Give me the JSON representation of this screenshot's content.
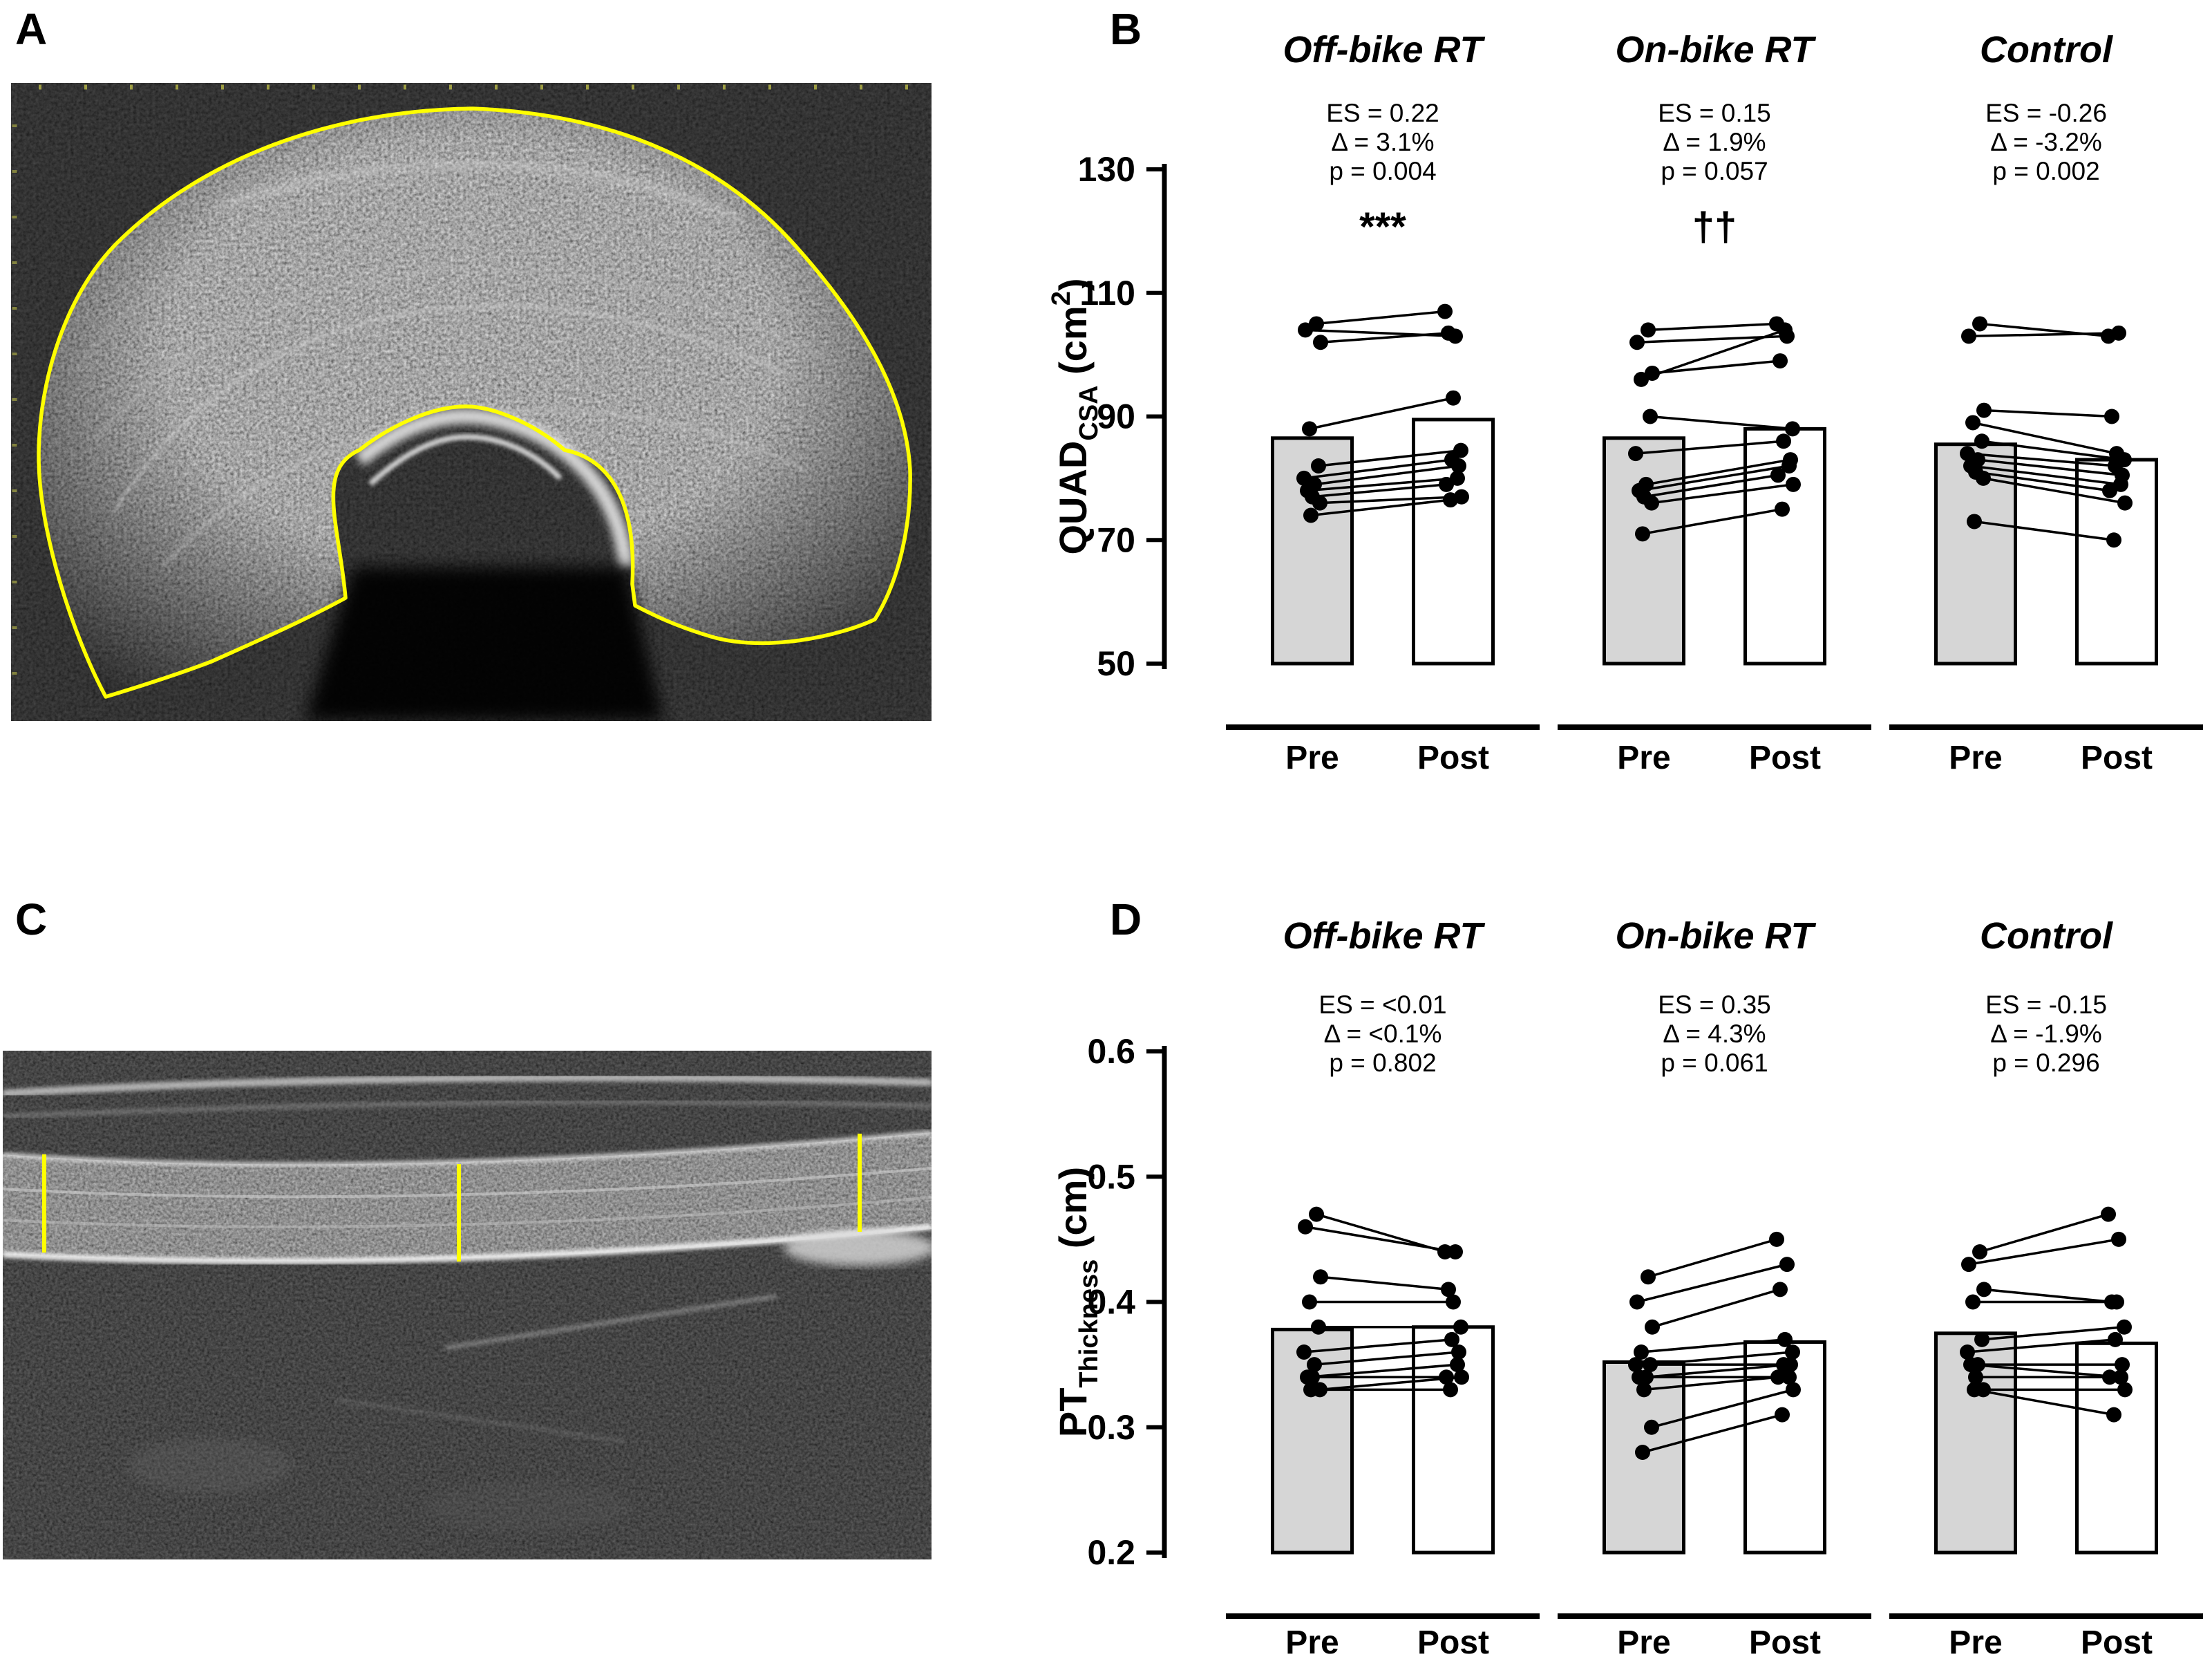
{
  "figure": {
    "panel_labels": {
      "a": "A",
      "b": "B",
      "c": "C",
      "d": "D"
    }
  },
  "styles": {
    "pre_fill": "#d6d6d6",
    "post_fill": "#ffffff",
    "outline": "#000000",
    "annotation_yellow": "#ffff00"
  },
  "chart_data": [
    {
      "panel": "B",
      "type": "bar",
      "title": "",
      "ylabel_text": "QUAD_CSA (cm2)",
      "ylabel_parts": [
        {
          "t": "QUAD",
          "pos": "n"
        },
        {
          "t": "CSA",
          "pos": "sub"
        },
        {
          "t": " (cm",
          "pos": "n"
        },
        {
          "t": "2",
          "pos": "sup"
        },
        {
          "t": ")",
          "pos": "n"
        }
      ],
      "ylim": [
        50,
        130
      ],
      "yticks": [
        "130",
        "110",
        "90",
        "70",
        "50"
      ],
      "categories": [
        "Pre",
        "Post"
      ],
      "legend": "none",
      "grid": false,
      "groups": [
        {
          "name": "Off-bike RT",
          "stats": [
            "ES = 0.22",
            "Δ = 3.1%",
            "p = 0.004"
          ],
          "marker": "***",
          "bars": {
            "pre": 86.5,
            "post": 89.5
          },
          "pairs": [
            [
              105,
              107
            ],
            [
              104,
              103
            ],
            [
              102,
              103.5
            ],
            [
              88,
              93
            ],
            [
              82,
              84.5
            ],
            [
              80,
              83
            ],
            [
              79,
              82
            ],
            [
              78,
              80
            ],
            [
              77,
              79
            ],
            [
              76,
              77
            ],
            [
              74,
              76.5
            ]
          ]
        },
        {
          "name": "On-bike RT",
          "stats": [
            "ES = 0.15",
            "Δ = 1.9%",
            "p = 0.057"
          ],
          "marker": "††",
          "bars": {
            "pre": 86.5,
            "post": 88
          },
          "pairs": [
            [
              104,
              105
            ],
            [
              102,
              103
            ],
            [
              97,
              99
            ],
            [
              96,
              104
            ],
            [
              90,
              88
            ],
            [
              84,
              86
            ],
            [
              79,
              83
            ],
            [
              78,
              82
            ],
            [
              77,
              80.5
            ],
            [
              76,
              79
            ],
            [
              71,
              75
            ]
          ]
        },
        {
          "name": "Control",
          "stats": [
            "ES = -0.26",
            "Δ = -3.2%",
            "p = 0.002"
          ],
          "marker": "",
          "bars": {
            "pre": 85.5,
            "post": 83
          },
          "pairs": [
            [
              105,
              103
            ],
            [
              103,
              103.5
            ],
            [
              91,
              90
            ],
            [
              89,
              84
            ],
            [
              86,
              83
            ],
            [
              84,
              82
            ],
            [
              83,
              80.5
            ],
            [
              82,
              79
            ],
            [
              81,
              78
            ],
            [
              80,
              76
            ],
            [
              73,
              70
            ]
          ]
        }
      ]
    },
    {
      "panel": "D",
      "type": "bar",
      "title": "",
      "ylabel_text": "PT_Thickness (cm)",
      "ylabel_parts": [
        {
          "t": "PT",
          "pos": "n"
        },
        {
          "t": "Thickness",
          "pos": "sub"
        },
        {
          "t": " (cm)",
          "pos": "n"
        }
      ],
      "ylim": [
        0.2,
        0.6
      ],
      "yticks": [
        "0.6",
        "0.5",
        "0.4",
        "0.3",
        "0.2"
      ],
      "categories": [
        "Pre",
        "Post"
      ],
      "legend": "none",
      "grid": false,
      "groups": [
        {
          "name": "Off-bike RT",
          "stats": [
            "ES = <0.01",
            "Δ = <0.1%",
            "p = 0.802"
          ],
          "marker": "",
          "bars": {
            "pre": 0.378,
            "post": 0.38
          },
          "pairs": [
            [
              0.47,
              0.44
            ],
            [
              0.46,
              0.44
            ],
            [
              0.42,
              0.41
            ],
            [
              0.4,
              0.4
            ],
            [
              0.38,
              0.38
            ],
            [
              0.36,
              0.37
            ],
            [
              0.35,
              0.36
            ],
            [
              0.34,
              0.35
            ],
            [
              0.34,
              0.34
            ],
            [
              0.33,
              0.34
            ],
            [
              0.33,
              0.33
            ]
          ]
        },
        {
          "name": "On-bike RT",
          "stats": [
            "ES = 0.35",
            "Δ = 4.3%",
            "p = 0.061"
          ],
          "marker": "",
          "bars": {
            "pre": 0.352,
            "post": 0.368
          },
          "pairs": [
            [
              0.42,
              0.45
            ],
            [
              0.4,
              0.43
            ],
            [
              0.38,
              0.41
            ],
            [
              0.36,
              0.37
            ],
            [
              0.35,
              0.36
            ],
            [
              0.35,
              0.35
            ],
            [
              0.34,
              0.35
            ],
            [
              0.34,
              0.34
            ],
            [
              0.33,
              0.34
            ],
            [
              0.3,
              0.33
            ],
            [
              0.28,
              0.31
            ]
          ]
        },
        {
          "name": "Control",
          "stats": [
            "ES = -0.15",
            "Δ = -1.9%",
            "p = 0.296"
          ],
          "marker": "",
          "bars": {
            "pre": 0.375,
            "post": 0.367
          },
          "pairs": [
            [
              0.44,
              0.47
            ],
            [
              0.43,
              0.45
            ],
            [
              0.41,
              0.4
            ],
            [
              0.4,
              0.4
            ],
            [
              0.37,
              0.38
            ],
            [
              0.36,
              0.37
            ],
            [
              0.35,
              0.35
            ],
            [
              0.35,
              0.34
            ],
            [
              0.34,
              0.34
            ],
            [
              0.33,
              0.33
            ],
            [
              0.33,
              0.31
            ]
          ]
        }
      ]
    }
  ]
}
